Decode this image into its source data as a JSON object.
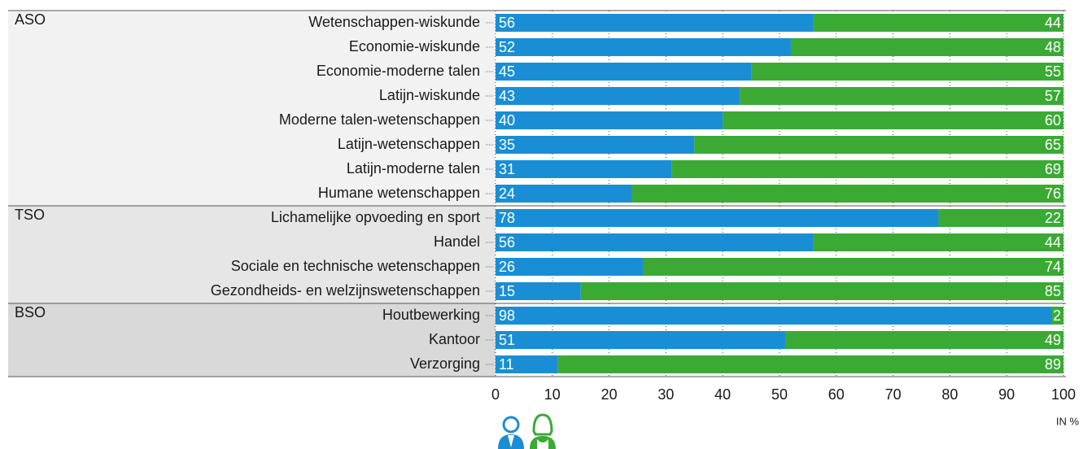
{
  "chart_data": {
    "type": "stacked-bar-horizontal",
    "groups": [
      {
        "label": "ASO",
        "categories": [
          "Wetenschappen-wiskunde",
          "Economie-wiskunde",
          "Economie-moderne talen",
          "Latijn-wiskunde",
          "Moderne talen-wetenschappen",
          "Latijn-wetenschappen",
          "Latijn-moderne talen",
          "Humane wetenschappen"
        ]
      },
      {
        "label": "TSO",
        "categories": [
          "Lichamelijke opvoeding en sport",
          "Handel",
          "Sociale en technische wetenschappen",
          "Gezondheids- en welzijnswetenschappen"
        ]
      },
      {
        "label": "BSO",
        "categories": [
          "Houtbewerking",
          "Kantoor",
          "Verzorging"
        ]
      }
    ],
    "series": [
      {
        "color": "#1a8ed5",
        "values": [
          56,
          52,
          45,
          43,
          40,
          35,
          31,
          24,
          78,
          56,
          26,
          15,
          98,
          51,
          11
        ]
      },
      {
        "color": "#3aaa35",
        "values": [
          44,
          48,
          55,
          57,
          60,
          65,
          69,
          76,
          22,
          44,
          74,
          85,
          2,
          49,
          89
        ]
      }
    ],
    "xlim": [
      0,
      100
    ],
    "xticks": [
      0,
      10,
      20,
      30,
      40,
      50,
      60,
      70,
      80,
      90,
      100
    ],
    "xlabel": "IN %",
    "grid": true
  }
}
